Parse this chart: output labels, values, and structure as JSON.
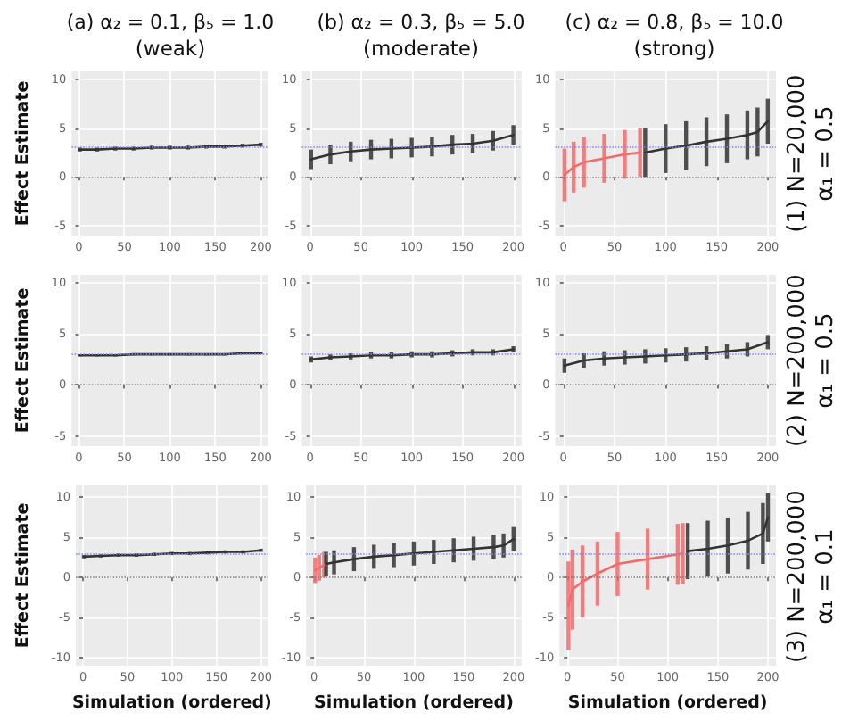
{
  "chart_data": [
    {
      "type": "line",
      "title": "(a) α₂ = 0.1, β₅ = 1.0",
      "subtitle": "(weak)",
      "ylabel": "Effect Estimate",
      "xlim": [
        -8,
        208
      ],
      "xticks": [
        0,
        50,
        100,
        150,
        200
      ],
      "ylim": [
        -6,
        10.8
      ],
      "yticks": [
        -5,
        0,
        5,
        10
      ],
      "grid": true,
      "ref_lines": [
        {
          "axis": "y",
          "value": 0,
          "color": "#777777",
          "line_style": "dotted"
        },
        {
          "axis": "y",
          "value": 3,
          "color": "#8888ee",
          "line_style": "dotted"
        }
      ],
      "series": [
        {
          "color": "#333333",
          "x": [
            1,
            20,
            40,
            60,
            80,
            100,
            120,
            140,
            160,
            180,
            200
          ],
          "values": [
            2.8,
            2.8,
            2.9,
            2.9,
            3.0,
            3.0,
            3.0,
            3.1,
            3.1,
            3.2,
            3.3
          ],
          "errors": [
            0.2,
            0.2,
            0.2,
            0.2,
            0.2,
            0.2,
            0.2,
            0.2,
            0.2,
            0.2,
            0.2
          ]
        }
      ]
    },
    {
      "type": "line",
      "title": "(b) α₂ = 0.3, β₅ = 5.0",
      "subtitle": "(moderate)",
      "xlim": [
        -8,
        208
      ],
      "xticks": [
        0,
        50,
        100,
        150,
        200
      ],
      "ylim": [
        -6,
        10.8
      ],
      "yticks": [
        -5,
        0,
        5,
        10
      ],
      "grid": true,
      "ref_lines": [
        {
          "axis": "y",
          "value": 0,
          "color": "#777777",
          "line_style": "dotted"
        },
        {
          "axis": "y",
          "value": 3,
          "color": "#8888ee",
          "line_style": "dotted"
        }
      ],
      "series": [
        {
          "color": "#333333",
          "x": [
            1,
            20,
            40,
            60,
            80,
            100,
            120,
            140,
            160,
            180,
            200
          ],
          "values": [
            1.8,
            2.3,
            2.6,
            2.8,
            2.9,
            3.0,
            3.1,
            3.3,
            3.4,
            3.7,
            4.3
          ],
          "errors": [
            1.0,
            1.0,
            1.0,
            1.0,
            1.0,
            1.0,
            1.0,
            1.0,
            1.0,
            1.0,
            1.0
          ]
        }
      ]
    },
    {
      "type": "line",
      "title": "(c) α₂ = 0.8, β₅ = 10.0",
      "subtitle": "(strong)",
      "annotations": [
        "(1) N=20,000",
        "α₁ = 0.5"
      ],
      "xlim": [
        -8,
        208
      ],
      "xticks": [
        0,
        50,
        100,
        150,
        200
      ],
      "ylim": [
        -6,
        10.8
      ],
      "yticks": [
        -5,
        0,
        5,
        10
      ],
      "grid": true,
      "ref_lines": [
        {
          "axis": "y",
          "value": 0,
          "color": "#777777",
          "line_style": "dotted"
        },
        {
          "axis": "y",
          "value": 3,
          "color": "#8888ee",
          "line_style": "dotted"
        }
      ],
      "series": [
        {
          "color": "#f26b6b",
          "x": [
            1,
            10,
            20,
            40,
            60,
            75
          ],
          "values": [
            0.2,
            1.0,
            1.5,
            1.9,
            2.3,
            2.5
          ],
          "errors": [
            2.7,
            2.6,
            2.6,
            2.5,
            2.5,
            2.5
          ]
        },
        {
          "color": "#333333",
          "x": [
            80,
            100,
            120,
            140,
            160,
            180,
            190,
            200
          ],
          "values": [
            2.5,
            2.9,
            3.2,
            3.6,
            3.9,
            4.3,
            4.6,
            5.7
          ],
          "errors": [
            2.5,
            2.5,
            2.5,
            2.5,
            2.5,
            2.5,
            2.5,
            2.3
          ]
        }
      ]
    },
    {
      "type": "line",
      "ylabel": "Effect Estimate",
      "xlim": [
        -8,
        208
      ],
      "xticks": [
        0,
        50,
        100,
        150,
        200
      ],
      "ylim": [
        -6,
        10.8
      ],
      "yticks": [
        -5,
        0,
        5,
        10
      ],
      "grid": true,
      "ref_lines": [
        {
          "axis": "y",
          "value": 0,
          "color": "#777777",
          "line_style": "dotted"
        },
        {
          "axis": "y",
          "value": 3,
          "color": "#8888ee",
          "line_style": "dotted"
        }
      ],
      "series": [
        {
          "color": "#333333",
          "x": [
            1,
            20,
            40,
            60,
            80,
            100,
            120,
            140,
            160,
            180,
            200
          ],
          "values": [
            2.9,
            2.9,
            2.9,
            3.0,
            3.0,
            3.0,
            3.0,
            3.0,
            3.0,
            3.1,
            3.1
          ],
          "errors": [
            0.1,
            0.1,
            0.1,
            0.1,
            0.1,
            0.1,
            0.1,
            0.1,
            0.1,
            0.1,
            0.1
          ]
        }
      ]
    },
    {
      "type": "line",
      "xlim": [
        -8,
        208
      ],
      "xticks": [
        0,
        50,
        100,
        150,
        200
      ],
      "ylim": [
        -6,
        10.8
      ],
      "yticks": [
        -5,
        0,
        5,
        10
      ],
      "grid": true,
      "ref_lines": [
        {
          "axis": "y",
          "value": 0,
          "color": "#777777",
          "line_style": "dotted"
        },
        {
          "axis": "y",
          "value": 3,
          "color": "#8888ee",
          "line_style": "dotted"
        }
      ],
      "series": [
        {
          "color": "#333333",
          "x": [
            1,
            20,
            40,
            60,
            80,
            100,
            120,
            140,
            160,
            180,
            200
          ],
          "values": [
            2.5,
            2.7,
            2.8,
            2.9,
            2.9,
            3.0,
            3.0,
            3.1,
            3.2,
            3.2,
            3.5
          ],
          "errors": [
            0.3,
            0.3,
            0.3,
            0.3,
            0.3,
            0.3,
            0.3,
            0.3,
            0.3,
            0.3,
            0.3
          ]
        }
      ]
    },
    {
      "type": "line",
      "annotations": [
        "(2) N=200,000",
        "α₁ = 0.5"
      ],
      "xlim": [
        -8,
        208
      ],
      "xticks": [
        0,
        50,
        100,
        150,
        200
      ],
      "ylim": [
        -6,
        10.8
      ],
      "yticks": [
        -5,
        0,
        5,
        10
      ],
      "grid": true,
      "ref_lines": [
        {
          "axis": "y",
          "value": 0,
          "color": "#777777",
          "line_style": "dotted"
        },
        {
          "axis": "y",
          "value": 3,
          "color": "#8888ee",
          "line_style": "dotted"
        }
      ],
      "series": [
        {
          "color": "#333333",
          "x": [
            1,
            20,
            40,
            60,
            80,
            100,
            120,
            140,
            160,
            180,
            200
          ],
          "values": [
            1.9,
            2.4,
            2.6,
            2.7,
            2.8,
            2.9,
            3.0,
            3.1,
            3.3,
            3.5,
            4.2
          ],
          "errors": [
            0.7,
            0.7,
            0.7,
            0.7,
            0.7,
            0.7,
            0.7,
            0.7,
            0.7,
            0.7,
            0.7
          ]
        }
      ]
    },
    {
      "type": "line",
      "ylabel": "Effect Estimate",
      "xlabel": "Simulation (ordered)",
      "xlim": [
        -8,
        208
      ],
      "xticks": [
        0,
        50,
        100,
        150,
        200
      ],
      "ylim": [
        -11,
        11.5
      ],
      "yticks": [
        -10,
        -5,
        0,
        5,
        10
      ],
      "grid": true,
      "ref_lines": [
        {
          "axis": "y",
          "value": 0,
          "color": "#777777",
          "line_style": "dotted"
        },
        {
          "axis": "y",
          "value": 3,
          "color": "#8888ee",
          "line_style": "dotted"
        }
      ],
      "series": [
        {
          "color": "#333333",
          "x": [
            1,
            20,
            40,
            60,
            80,
            100,
            120,
            140,
            160,
            180,
            200
          ],
          "values": [
            2.6,
            2.7,
            2.8,
            2.8,
            2.9,
            3.0,
            3.0,
            3.1,
            3.2,
            3.2,
            3.4
          ],
          "errors": [
            0.2,
            0.2,
            0.2,
            0.2,
            0.2,
            0.2,
            0.2,
            0.2,
            0.2,
            0.2,
            0.2
          ]
        }
      ]
    },
    {
      "type": "line",
      "xlabel": "Simulation (ordered)",
      "xlim": [
        -8,
        208
      ],
      "xticks": [
        0,
        50,
        100,
        150,
        200
      ],
      "ylim": [
        -11,
        11.5
      ],
      "yticks": [
        -10,
        -5,
        0,
        5,
        10
      ],
      "grid": true,
      "ref_lines": [
        {
          "axis": "y",
          "value": 0,
          "color": "#777777",
          "line_style": "dotted"
        },
        {
          "axis": "y",
          "value": 3,
          "color": "#8888ee",
          "line_style": "dotted"
        }
      ],
      "series": [
        {
          "color": "#f26b6b",
          "x": [
            1,
            5,
            10
          ],
          "values": [
            0.9,
            1.2,
            1.6
          ],
          "errors": [
            1.6,
            1.6,
            1.6
          ]
        },
        {
          "color": "#333333",
          "x": [
            12,
            20,
            40,
            60,
            80,
            100,
            120,
            140,
            160,
            180,
            190,
            200
          ],
          "values": [
            1.7,
            1.9,
            2.3,
            2.6,
            2.8,
            3.0,
            3.2,
            3.4,
            3.6,
            3.8,
            4.0,
            4.8
          ],
          "errors": [
            1.5,
            1.5,
            1.5,
            1.5,
            1.5,
            1.5,
            1.5,
            1.5,
            1.5,
            1.5,
            1.5,
            1.5
          ]
        }
      ]
    },
    {
      "type": "line",
      "xlabel": "Simulation (ordered)",
      "annotations": [
        "(3) N=200,000",
        "α₁ = 0.1"
      ],
      "xlim": [
        -8,
        208
      ],
      "xticks": [
        0,
        50,
        100,
        150,
        200
      ],
      "ylim": [
        -11,
        11.5
      ],
      "yticks": [
        -10,
        -5,
        0,
        5,
        10
      ],
      "grid": true,
      "ref_lines": [
        {
          "axis": "y",
          "value": 0,
          "color": "#777777",
          "line_style": "dotted"
        },
        {
          "axis": "y",
          "value": 3,
          "color": "#8888ee",
          "line_style": "dotted"
        }
      ],
      "series": [
        {
          "color": "#f26b6b",
          "x": [
            1,
            5,
            15,
            30,
            50,
            80,
            110,
            115
          ],
          "values": [
            -3.5,
            -1.5,
            -0.5,
            0.5,
            1.7,
            2.3,
            2.9,
            3.0
          ],
          "errors": [
            5.5,
            5,
            4.5,
            4,
            4,
            3.8,
            3.8,
            3.8
          ]
        },
        {
          "color": "#333333",
          "x": [
            120,
            140,
            160,
            180,
            195,
            200
          ],
          "values": [
            3.3,
            3.6,
            4.0,
            4.6,
            5.5,
            7.5
          ],
          "errors": [
            3.5,
            3.5,
            3.5,
            3.6,
            3.8,
            3
          ]
        }
      ]
    }
  ]
}
